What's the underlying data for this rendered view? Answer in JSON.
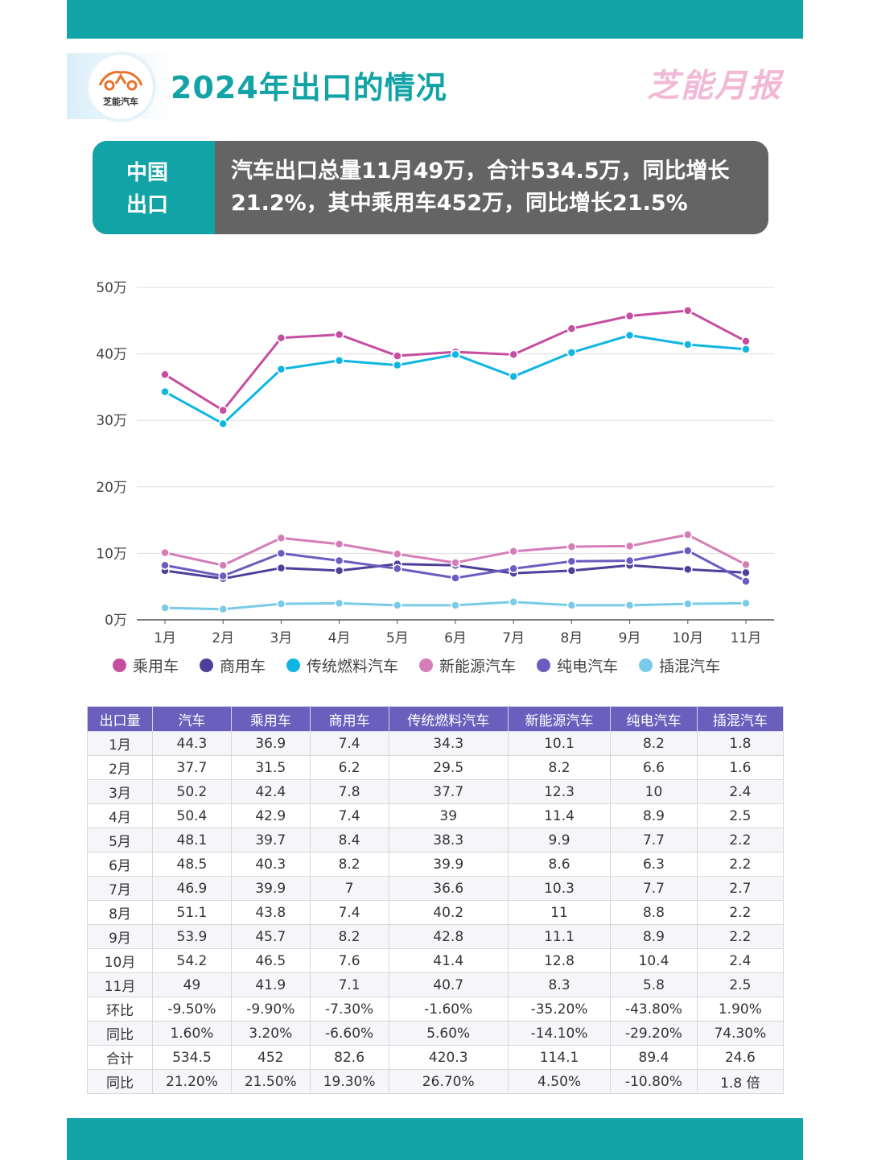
{
  "header": {
    "title": "2024年出口的情况",
    "brand": "芝能月报",
    "logo_text": "芝能汽车"
  },
  "banner": {
    "label": "中国出口",
    "text": "汽车出口总量11月49万，合计534.5万，同比增长21.2%，其中乘用车452万，同比增长21.5%"
  },
  "colors": {
    "teal": "#12a3a6",
    "purple_header": "#6a5fbd",
    "banner_gray": "#646464"
  },
  "chart_data": {
    "type": "line",
    "categories": [
      "1月",
      "2月",
      "3月",
      "4月",
      "5月",
      "6月",
      "7月",
      "8月",
      "9月",
      "10月",
      "11月"
    ],
    "yticks": [
      "0万",
      "10万",
      "20万",
      "30万",
      "40万",
      "50万"
    ],
    "ylim": [
      0,
      50
    ],
    "grid": true,
    "legend_position": "bottom",
    "series": [
      {
        "name": "乘用车",
        "color": "#c64ea0",
        "values": [
          36.9,
          31.5,
          42.4,
          42.9,
          39.7,
          40.3,
          39.9,
          43.8,
          45.7,
          46.5,
          41.9
        ]
      },
      {
        "name": "商用车",
        "color": "#4f3f9a",
        "values": [
          7.4,
          6.2,
          7.8,
          7.4,
          8.4,
          8.2,
          7.0,
          7.4,
          8.2,
          7.6,
          7.1
        ]
      },
      {
        "name": "传统燃料汽车",
        "color": "#10b6e3",
        "values": [
          34.3,
          29.5,
          37.7,
          39.0,
          38.3,
          39.9,
          36.6,
          40.2,
          42.8,
          41.4,
          40.7
        ]
      },
      {
        "name": "新能源汽车",
        "color": "#d57db8",
        "values": [
          10.1,
          8.2,
          12.3,
          11.4,
          9.9,
          8.6,
          10.3,
          11.0,
          11.1,
          12.8,
          8.3
        ]
      },
      {
        "name": "纯电汽车",
        "color": "#6b5cbf",
        "values": [
          8.2,
          6.6,
          10.0,
          8.9,
          7.7,
          6.3,
          7.7,
          8.8,
          8.9,
          10.4,
          5.8
        ]
      },
      {
        "name": "插混汽车",
        "color": "#79cbe8",
        "values": [
          1.8,
          1.6,
          2.4,
          2.5,
          2.2,
          2.2,
          2.7,
          2.2,
          2.2,
          2.4,
          2.5
        ]
      }
    ]
  },
  "table": {
    "headers": [
      "出口量",
      "汽车",
      "乘用车",
      "商用车",
      "传统燃料汽车",
      "新能源汽车",
      "纯电汽车",
      "插混汽车"
    ],
    "rows": [
      [
        "1月",
        "44.3",
        "36.9",
        "7.4",
        "34.3",
        "10.1",
        "8.2",
        "1.8"
      ],
      [
        "2月",
        "37.7",
        "31.5",
        "6.2",
        "29.5",
        "8.2",
        "6.6",
        "1.6"
      ],
      [
        "3月",
        "50.2",
        "42.4",
        "7.8",
        "37.7",
        "12.3",
        "10",
        "2.4"
      ],
      [
        "4月",
        "50.4",
        "42.9",
        "7.4",
        "39",
        "11.4",
        "8.9",
        "2.5"
      ],
      [
        "5月",
        "48.1",
        "39.7",
        "8.4",
        "38.3",
        "9.9",
        "7.7",
        "2.2"
      ],
      [
        "6月",
        "48.5",
        "40.3",
        "8.2",
        "39.9",
        "8.6",
        "6.3",
        "2.2"
      ],
      [
        "7月",
        "46.9",
        "39.9",
        "7",
        "36.6",
        "10.3",
        "7.7",
        "2.7"
      ],
      [
        "8月",
        "51.1",
        "43.8",
        "7.4",
        "40.2",
        "11",
        "8.8",
        "2.2"
      ],
      [
        "9月",
        "53.9",
        "45.7",
        "8.2",
        "42.8",
        "11.1",
        "8.9",
        "2.2"
      ],
      [
        "10月",
        "54.2",
        "46.5",
        "7.6",
        "41.4",
        "12.8",
        "10.4",
        "2.4"
      ],
      [
        "11月",
        "49",
        "41.9",
        "7.1",
        "40.7",
        "8.3",
        "5.8",
        "2.5"
      ],
      [
        "环比",
        "-9.50%",
        "-9.90%",
        "-7.30%",
        "-1.60%",
        "-35.20%",
        "-43.80%",
        "1.90%"
      ],
      [
        "同比",
        "1.60%",
        "3.20%",
        "-6.60%",
        "5.60%",
        "-14.10%",
        "-29.20%",
        "74.30%"
      ],
      [
        "合计",
        "534.5",
        "452",
        "82.6",
        "420.3",
        "114.1",
        "89.4",
        "24.6"
      ],
      [
        "同比",
        "21.20%",
        "21.50%",
        "19.30%",
        "26.70%",
        "4.50%",
        "-10.80%",
        "1.8 倍"
      ]
    ]
  }
}
